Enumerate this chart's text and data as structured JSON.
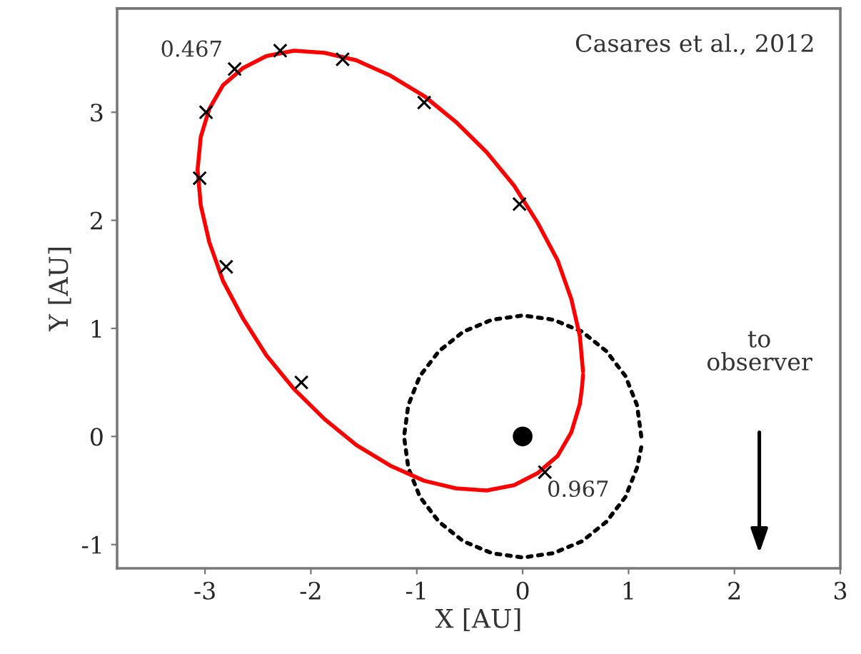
{
  "chart_data": {
    "type": "line",
    "xlabel": "X [AU]",
    "ylabel": "Y [AU]",
    "xlim": [
      -3.83,
      3.0
    ],
    "ylim": [
      -1.22,
      3.96
    ],
    "xticks": [
      -3,
      -2,
      -1,
      0,
      1,
      2,
      3
    ],
    "yticks": [
      -1,
      0,
      1,
      2,
      3
    ],
    "series": [
      {
        "color": "#ff0000",
        "line_style": "solid",
        "marker": "none",
        "x": [
          0.57,
          0.54,
          0.46,
          0.33,
          0.14,
          -0.08,
          -0.34,
          -0.63,
          -0.93,
          -1.25,
          -1.57,
          -1.87,
          -2.16,
          -2.42,
          -2.64,
          -2.83,
          -2.96,
          -3.04,
          -3.07,
          -3.04,
          -2.96,
          -2.83,
          -2.64,
          -2.42,
          -2.16,
          -1.87,
          -1.57,
          -1.25,
          -0.93,
          -0.63,
          -0.34,
          -0.08,
          0.14,
          0.33,
          0.46,
          0.54,
          0.56,
          0.57
        ],
        "values": [
          0.6,
          0.93,
          1.27,
          1.63,
          1.98,
          2.32,
          2.63,
          2.91,
          3.15,
          3.34,
          3.48,
          3.55,
          3.57,
          3.52,
          3.41,
          3.25,
          3.03,
          2.77,
          2.47,
          2.14,
          1.8,
          1.44,
          1.09,
          0.75,
          0.44,
          0.16,
          -0.08,
          -0.27,
          -0.41,
          -0.48,
          -0.5,
          -0.45,
          -0.34,
          -0.18,
          0.04,
          0.3,
          0.45,
          0.57
        ]
      },
      {
        "color": "#000000",
        "line_style": "dotted",
        "marker": "none",
        "x": [
          1.12,
          1.08,
          0.97,
          0.79,
          0.56,
          0.29,
          0,
          -0.29,
          -0.56,
          -0.79,
          -0.97,
          -1.08,
          -1.12,
          -1.08,
          -0.97,
          -0.79,
          -0.56,
          -0.29,
          0,
          0.29,
          0.56,
          0.79,
          0.97,
          1.08,
          1.12
        ],
        "values": [
          0,
          0.29,
          0.56,
          0.79,
          0.97,
          1.08,
          1.12,
          1.08,
          0.97,
          0.79,
          0.56,
          0.29,
          0,
          -0.29,
          -0.56,
          -0.79,
          -0.97,
          -1.08,
          -1.12,
          -1.08,
          -0.97,
          -0.79,
          -0.56,
          -0.29,
          -0.1
        ]
      },
      {
        "type": "scatter",
        "color": "#000000",
        "marker": "cross",
        "x": [
          -3.05,
          -2.99,
          -2.72,
          -2.29,
          -1.7,
          -0.93,
          -0.03,
          -2.8,
          -2.09,
          0.21
        ],
        "values": [
          2.39,
          3.0,
          3.4,
          3.57,
          3.49,
          3.09,
          2.15,
          1.57,
          0.5,
          -0.33
        ]
      },
      {
        "type": "scatter",
        "color": "#000000",
        "marker": "circle",
        "x": [
          0
        ],
        "values": [
          0
        ]
      }
    ],
    "annotations": [
      {
        "text": "0.467",
        "x": -2.72,
        "y": 3.4
      },
      {
        "text": "0.967",
        "x": 0.21,
        "y": -0.33
      },
      "Casares et al., 2012",
      "to\nobserver"
    ]
  }
}
